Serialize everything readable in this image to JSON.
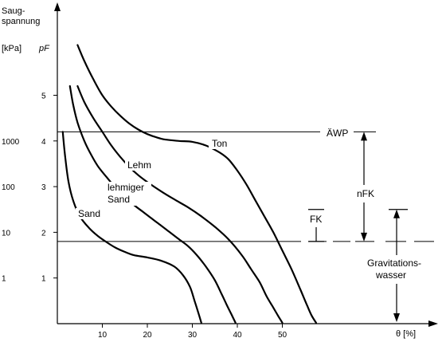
{
  "chart_data": {
    "type": "line",
    "ylabel_lines": [
      "Saug-",
      "spannung"
    ],
    "ylabel_unit_kpa": "[kPa]",
    "ylabel_unit_pf": "pF",
    "xlabel": "θ [%]",
    "xlim": [
      0,
      60
    ],
    "ylim": [
      0,
      6
    ],
    "x_ticks": [
      10,
      20,
      30,
      40,
      50
    ],
    "pf_ticks": [
      1,
      2,
      3,
      4,
      5
    ],
    "kpa_ticks": [
      {
        "pf": 1,
        "label": "1"
      },
      {
        "pf": 2,
        "label": "10"
      },
      {
        "pf": 3,
        "label": "100"
      },
      {
        "pf": 4,
        "label": "1000"
      }
    ],
    "series": [
      {
        "name": "Sand",
        "x": [
          1.2,
          1.8,
          2.5,
          3.5,
          5,
          7,
          9,
          11,
          13,
          15,
          17,
          20,
          23,
          26,
          28,
          29.5,
          30.5,
          31.3,
          32
        ],
        "y": [
          4.2,
          3.6,
          3.1,
          2.7,
          2.35,
          2.1,
          1.92,
          1.78,
          1.66,
          1.57,
          1.5,
          1.45,
          1.38,
          1.25,
          1.05,
          0.8,
          0.5,
          0.25,
          0.02
        ]
      },
      {
        "name": "lehmiger Sand",
        "x": [
          2.8,
          3.5,
          4.5,
          6,
          7.5,
          9,
          11,
          13,
          15,
          17,
          19,
          21,
          23,
          25,
          27,
          29,
          31,
          33,
          35,
          36.5,
          37.7,
          38.7,
          39.6
        ],
        "y": [
          5.2,
          4.8,
          4.4,
          4.0,
          3.7,
          3.45,
          3.2,
          2.97,
          2.78,
          2.6,
          2.45,
          2.3,
          2.15,
          2.0,
          1.85,
          1.7,
          1.5,
          1.25,
          0.95,
          0.65,
          0.4,
          0.2,
          0.02
        ]
      },
      {
        "name": "Lehm",
        "x": [
          4.5,
          6,
          8,
          10,
          12,
          14,
          16,
          18,
          20,
          23,
          26,
          29,
          32,
          35,
          38,
          41,
          43,
          45,
          46.5,
          48,
          49,
          50
        ],
        "y": [
          5.2,
          4.85,
          4.5,
          4.2,
          3.9,
          3.65,
          3.43,
          3.25,
          3.1,
          2.9,
          2.72,
          2.55,
          2.35,
          2.12,
          1.85,
          1.5,
          1.2,
          0.9,
          0.6,
          0.35,
          0.18,
          0.02
        ]
      },
      {
        "name": "Ton",
        "x": [
          4.5,
          6,
          8,
          10,
          12,
          14,
          16,
          18,
          20,
          22,
          24,
          27,
          30,
          33,
          36,
          38,
          40,
          42,
          44,
          46,
          48,
          50,
          52,
          54,
          55.5,
          56.5,
          57.5
        ],
        "y": [
          6.1,
          5.75,
          5.35,
          5.0,
          4.75,
          4.55,
          4.38,
          4.25,
          4.15,
          4.08,
          4.03,
          4.0,
          3.98,
          3.9,
          3.75,
          3.6,
          3.35,
          3.05,
          2.7,
          2.35,
          2.0,
          1.6,
          1.2,
          0.75,
          0.4,
          0.18,
          0.02
        ]
      }
    ],
    "reference_lines": [
      {
        "label": "ÄWP",
        "pf": 4.2
      },
      {
        "label": "",
        "pf": 1.8
      }
    ],
    "brackets": [
      {
        "label": "FK",
        "x": 54.5,
        "from_pf": 1.8,
        "to_pf": 2.5
      },
      {
        "label": "nFK",
        "x": 65,
        "from_pf": 1.8,
        "to_pf": 4.2
      },
      {
        "label_lines": [
          "Gravitations-",
          "wasser"
        ],
        "x": 72,
        "from_pf": 0.0,
        "to_pf": 2.5
      }
    ],
    "colors": {
      "line": "#000000",
      "background": "#ffffff"
    }
  }
}
